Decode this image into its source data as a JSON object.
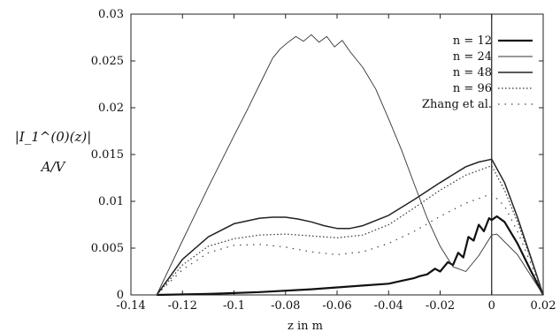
{
  "chart_data": {
    "type": "line",
    "title": "",
    "xlabel": "z in m",
    "ylabel_line1": "|I_1^(0)(z)|",
    "ylabel_line2": "A/V",
    "xlim": [
      -0.14,
      0.02
    ],
    "ylim": [
      0,
      0.03
    ],
    "grid": false,
    "legend_position": "top-right",
    "vertical_marker_x": 0,
    "x_ticks": [
      "-0.14",
      "-0.12",
      "-0.1",
      "-0.08",
      "-0.06",
      "-0.04",
      "-0.02",
      "0",
      "0.02"
    ],
    "x_tick_values": [
      -0.14,
      -0.12,
      -0.1,
      -0.08,
      -0.06,
      -0.04,
      -0.02,
      0,
      0.02
    ],
    "y_ticks": [
      "0",
      "0.005",
      "0.01",
      "0.015",
      "0.02",
      "0.025",
      "0.03"
    ],
    "y_tick_values": [
      0,
      0.005,
      0.01,
      0.015,
      0.02,
      0.025,
      0.03
    ],
    "series": [
      {
        "name": "n = 12",
        "style": "thick",
        "x": [
          -0.13,
          -0.11,
          -0.09,
          -0.07,
          -0.06,
          -0.05,
          -0.04,
          -0.035,
          -0.03,
          -0.028,
          -0.025,
          -0.022,
          -0.02,
          -0.017,
          -0.015,
          -0.013,
          -0.011,
          -0.009,
          -0.007,
          -0.005,
          -0.003,
          -0.001,
          0,
          0.002,
          0.005,
          0.01,
          0.015,
          0.02
        ],
        "y": [
          0,
          0.0001,
          0.0003,
          0.0006,
          0.0008,
          0.001,
          0.0012,
          0.0015,
          0.0018,
          0.002,
          0.0022,
          0.0028,
          0.0025,
          0.0035,
          0.0032,
          0.0045,
          0.004,
          0.0062,
          0.0058,
          0.0075,
          0.0068,
          0.0082,
          0.008,
          0.0084,
          0.0078,
          0.0055,
          0.0027,
          0
        ]
      },
      {
        "name": "n = 24",
        "style": "thin",
        "x": [
          -0.13,
          -0.12,
          -0.11,
          -0.1,
          -0.095,
          -0.09,
          -0.085,
          -0.082,
          -0.079,
          -0.076,
          -0.073,
          -0.07,
          -0.067,
          -0.064,
          -0.061,
          -0.058,
          -0.055,
          -0.05,
          -0.045,
          -0.04,
          -0.035,
          -0.03,
          -0.025,
          -0.02,
          -0.015,
          -0.01,
          -0.005,
          0,
          0.002,
          0.01,
          0.02
        ],
        "y": [
          0,
          0.0058,
          0.0115,
          0.017,
          0.0197,
          0.0225,
          0.0253,
          0.0263,
          0.027,
          0.0276,
          0.0271,
          0.0278,
          0.027,
          0.0276,
          0.0265,
          0.0272,
          0.026,
          0.0243,
          0.022,
          0.0188,
          0.0155,
          0.0118,
          0.0082,
          0.0052,
          0.003,
          0.0025,
          0.0042,
          0.0064,
          0.0065,
          0.0043,
          0
        ]
      },
      {
        "name": "n = 48",
        "style": "medium",
        "x": [
          -0.13,
          -0.12,
          -0.11,
          -0.1,
          -0.09,
          -0.085,
          -0.08,
          -0.075,
          -0.07,
          -0.065,
          -0.06,
          -0.055,
          -0.05,
          -0.04,
          -0.03,
          -0.02,
          -0.01,
          -0.005,
          0,
          0.005,
          0.01,
          0.015,
          0.02
        ],
        "y": [
          0,
          0.0038,
          0.0062,
          0.0076,
          0.0082,
          0.0083,
          0.0083,
          0.0081,
          0.0078,
          0.0074,
          0.0071,
          0.0071,
          0.0074,
          0.0085,
          0.0102,
          0.012,
          0.0137,
          0.0142,
          0.0145,
          0.012,
          0.0083,
          0.0042,
          0
        ]
      },
      {
        "name": "n = 96",
        "style": "dotted",
        "x": [
          -0.13,
          -0.12,
          -0.11,
          -0.1,
          -0.09,
          -0.08,
          -0.07,
          -0.06,
          -0.05,
          -0.04,
          -0.03,
          -0.02,
          -0.01,
          0,
          0.005,
          0.01,
          0.015,
          0.02
        ],
        "y": [
          0,
          0.0032,
          0.0052,
          0.006,
          0.0064,
          0.0065,
          0.0063,
          0.0061,
          0.0064,
          0.0075,
          0.0093,
          0.0112,
          0.0128,
          0.0138,
          0.0112,
          0.0078,
          0.004,
          0
        ]
      },
      {
        "name": "Zhang et al.",
        "style": "sparse-dotted",
        "x": [
          -0.13,
          -0.12,
          -0.11,
          -0.1,
          -0.09,
          -0.08,
          -0.07,
          -0.06,
          -0.05,
          -0.04,
          -0.03,
          -0.02,
          -0.01,
          0,
          0.005,
          0.01,
          0.015,
          0.02
        ],
        "y": [
          0,
          0.0027,
          0.0045,
          0.0053,
          0.0054,
          0.0051,
          0.0046,
          0.0043,
          0.0046,
          0.0055,
          0.0068,
          0.0084,
          0.0098,
          0.0108,
          0.0095,
          0.0068,
          0.0035,
          0
        ]
      }
    ]
  }
}
